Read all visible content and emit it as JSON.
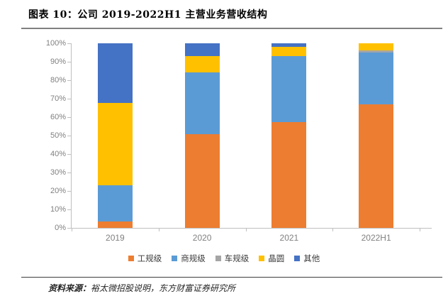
{
  "header": {
    "title": "图表 10：公司 2019-2022H1 主营业务营收结构"
  },
  "footer": {
    "source_label": "资料来源：",
    "source_text": "裕太微招股说明，东方财富证券研究所"
  },
  "style_colors": {
    "title_rule": "#808080",
    "axis_line": "#BFBFBF",
    "axis_label": "#808080",
    "legend_text": "#3b3b3b"
  },
  "chart_data": {
    "type": "bar",
    "stacked": true,
    "unit": "percent",
    "title": "公司 2019-2022H1 主营业务营收结构",
    "xlabel": "",
    "ylabel": "",
    "ylim": [
      0,
      100
    ],
    "grid": false,
    "legend_position": "bottom",
    "yticks": [
      "0%",
      "10%",
      "20%",
      "30%",
      "40%",
      "50%",
      "60%",
      "70%",
      "80%",
      "90%",
      "100%"
    ],
    "categories": [
      "2019",
      "2020",
      "2021",
      "2022H1"
    ],
    "series": [
      {
        "name": "工规级",
        "color": "#ED7D31",
        "values": [
          3.3,
          50.7,
          57.5,
          66.8
        ]
      },
      {
        "name": "商规级",
        "color": "#5B9BD5",
        "values": [
          19.9,
          33.5,
          35.5,
          28.2
        ]
      },
      {
        "name": "车规级",
        "color": "#A5A5A5",
        "values": [
          0,
          0,
          0,
          1.0
        ]
      },
      {
        "name": "晶圆",
        "color": "#FFC000",
        "values": [
          44.5,
          8.8,
          5.0,
          4.0
        ]
      },
      {
        "name": "其他",
        "color": "#4472C4",
        "values": [
          32.3,
          7.0,
          2.0,
          0
        ]
      }
    ]
  }
}
